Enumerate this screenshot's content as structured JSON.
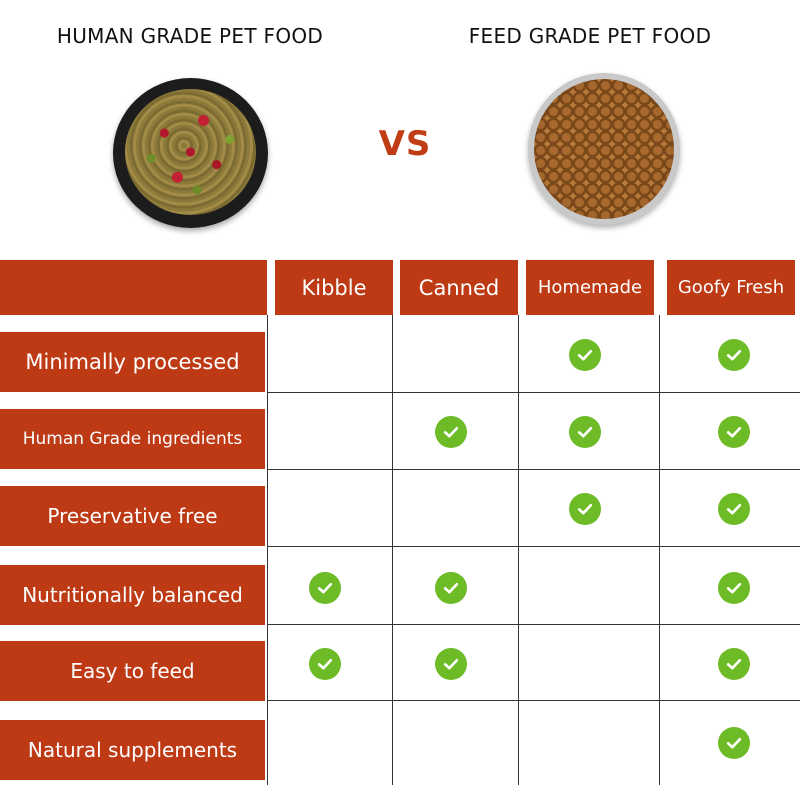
{
  "headings": {
    "left": "HUMAN GRADE PET FOOD",
    "right": "FEED GRADE PET FOOD",
    "vs": "VS"
  },
  "colors": {
    "accent": "#bd3a15",
    "check": "#6dbb26"
  },
  "columns": [
    "Kibble",
    "Canned",
    "Homemade",
    "Goofy Fresh"
  ],
  "rows": [
    {
      "label": "Minimally processed",
      "checks": [
        false,
        false,
        true,
        true
      ]
    },
    {
      "label": "Human Grade ingredients",
      "checks": [
        false,
        true,
        true,
        true
      ]
    },
    {
      "label": "Preservative free",
      "checks": [
        false,
        false,
        true,
        true
      ]
    },
    {
      "label": "Nutritionally balanced",
      "checks": [
        true,
        true,
        false,
        true
      ]
    },
    {
      "label": "Easy to feed",
      "checks": [
        true,
        true,
        false,
        true
      ]
    },
    {
      "label": "Natural supplements",
      "checks": [
        false,
        false,
        false,
        true
      ]
    }
  ],
  "icons": {
    "check": "check-circle-icon",
    "bowl_left": "fresh-food-bowl",
    "bowl_right": "kibble-bowl"
  }
}
